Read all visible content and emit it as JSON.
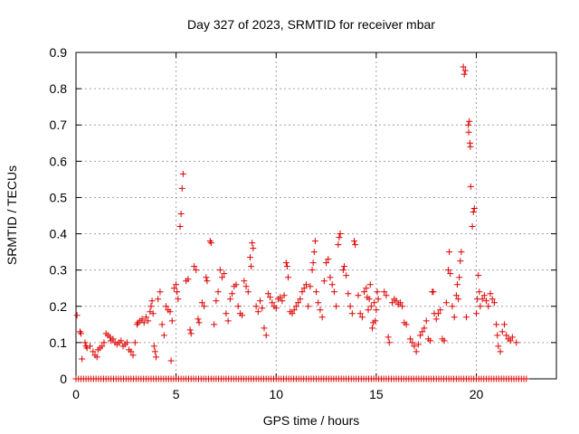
{
  "chart_data": {
    "type": "scatter",
    "title": "Day 327 of 2023, SRMTID for receiver mbar",
    "xlabel": "GPS time / hours",
    "ylabel": "SRMTID / TECUs",
    "xlim": [
      0,
      24
    ],
    "ylim": [
      0,
      0.9
    ],
    "x_ticks": [
      0,
      5,
      10,
      15,
      20
    ],
    "x_tick_labels": [
      "0",
      "5",
      "10",
      "15",
      "20"
    ],
    "y_ticks": [
      0,
      0.1,
      0.2,
      0.3,
      0.4,
      0.5,
      0.6,
      0.7,
      0.8,
      0.9
    ],
    "y_tick_labels": [
      "0",
      "0.1",
      "0.2",
      "0.3",
      "0.4",
      "0.5",
      "0.6",
      "0.7",
      "0.8",
      "0.9"
    ],
    "grid": true,
    "marker": "plus",
    "color": "#dd0000",
    "zero_series": {
      "x_start": 0.0,
      "x_end": 22.5,
      "step": 0.125,
      "value": 0
    },
    "series": [
      {
        "name": "SRMTID",
        "points": [
          [
            0.05,
            0.175
          ],
          [
            0.2,
            0.13
          ],
          [
            0.25,
            0.125
          ],
          [
            0.3,
            0.055
          ],
          [
            0.45,
            0.1
          ],
          [
            0.5,
            0.09
          ],
          [
            0.55,
            0.085
          ],
          [
            0.7,
            0.09
          ],
          [
            0.85,
            0.075
          ],
          [
            0.95,
            0.065
          ],
          [
            1.05,
            0.06
          ],
          [
            1.1,
            0.08
          ],
          [
            1.2,
            0.085
          ],
          [
            1.3,
            0.09
          ],
          [
            1.4,
            0.1
          ],
          [
            1.5,
            0.125
          ],
          [
            1.6,
            0.12
          ],
          [
            1.7,
            0.115
          ],
          [
            1.75,
            0.105
          ],
          [
            1.85,
            0.11
          ],
          [
            1.95,
            0.1
          ],
          [
            2.05,
            0.095
          ],
          [
            2.15,
            0.1
          ],
          [
            2.25,
            0.105
          ],
          [
            2.35,
            0.09
          ],
          [
            2.45,
            0.095
          ],
          [
            2.55,
            0.1
          ],
          [
            2.65,
            0.08
          ],
          [
            2.75,
            0.075
          ],
          [
            2.85,
            0.065
          ],
          [
            2.95,
            0.1
          ],
          [
            3.05,
            0.15
          ],
          [
            3.1,
            0.155
          ],
          [
            3.2,
            0.16
          ],
          [
            3.3,
            0.165
          ],
          [
            3.4,
            0.155
          ],
          [
            3.5,
            0.17
          ],
          [
            3.6,
            0.16
          ],
          [
            3.7,
            0.185
          ],
          [
            3.75,
            0.2
          ],
          [
            3.8,
            0.215
          ],
          [
            3.85,
            0.18
          ],
          [
            3.9,
            0.09
          ],
          [
            3.95,
            0.075
          ],
          [
            4.0,
            0.06
          ],
          [
            4.1,
            0.22
          ],
          [
            4.2,
            0.24
          ],
          [
            4.3,
            0.15
          ],
          [
            4.4,
            0.12
          ],
          [
            4.5,
            0.2
          ],
          [
            4.6,
            0.19
          ],
          [
            4.7,
            0.185
          ],
          [
            4.75,
            0.05
          ],
          [
            4.8,
            0.16
          ],
          [
            4.9,
            0.25
          ],
          [
            5.0,
            0.26
          ],
          [
            5.05,
            0.24
          ],
          [
            5.1,
            0.22
          ],
          [
            5.2,
            0.42
          ],
          [
            5.25,
            0.455
          ],
          [
            5.3,
            0.525
          ],
          [
            5.35,
            0.565
          ],
          [
            5.5,
            0.27
          ],
          [
            5.6,
            0.275
          ],
          [
            5.7,
            0.135
          ],
          [
            5.75,
            0.125
          ],
          [
            5.9,
            0.31
          ],
          [
            6.0,
            0.3
          ],
          [
            6.1,
            0.165
          ],
          [
            6.15,
            0.155
          ],
          [
            6.3,
            0.21
          ],
          [
            6.4,
            0.2
          ],
          [
            6.5,
            0.28
          ],
          [
            6.55,
            0.27
          ],
          [
            6.7,
            0.38
          ],
          [
            6.75,
            0.375
          ],
          [
            6.9,
            0.15
          ],
          [
            7.0,
            0.215
          ],
          [
            7.1,
            0.24
          ],
          [
            7.2,
            0.3
          ],
          [
            7.3,
            0.28
          ],
          [
            7.4,
            0.29
          ],
          [
            7.5,
            0.18
          ],
          [
            7.6,
            0.16
          ],
          [
            7.7,
            0.22
          ],
          [
            7.8,
            0.235
          ],
          [
            7.9,
            0.255
          ],
          [
            8.0,
            0.26
          ],
          [
            8.1,
            0.2
          ],
          [
            8.2,
            0.18
          ],
          [
            8.3,
            0.175
          ],
          [
            8.4,
            0.27
          ],
          [
            8.5,
            0.255
          ],
          [
            8.6,
            0.24
          ],
          [
            8.7,
            0.335
          ],
          [
            8.75,
            0.31
          ],
          [
            8.8,
            0.375
          ],
          [
            8.85,
            0.36
          ],
          [
            9.0,
            0.2
          ],
          [
            9.1,
            0.185
          ],
          [
            9.2,
            0.215
          ],
          [
            9.3,
            0.195
          ],
          [
            9.4,
            0.14
          ],
          [
            9.5,
            0.12
          ],
          [
            9.6,
            0.235
          ],
          [
            9.7,
            0.225
          ],
          [
            9.8,
            0.21
          ],
          [
            9.9,
            0.2
          ],
          [
            10.0,
            0.195
          ],
          [
            10.1,
            0.22
          ],
          [
            10.2,
            0.225
          ],
          [
            10.3,
            0.215
          ],
          [
            10.4,
            0.23
          ],
          [
            10.5,
            0.32
          ],
          [
            10.55,
            0.31
          ],
          [
            10.6,
            0.28
          ],
          [
            10.7,
            0.185
          ],
          [
            10.8,
            0.18
          ],
          [
            10.9,
            0.19
          ],
          [
            11.0,
            0.2
          ],
          [
            11.1,
            0.21
          ],
          [
            11.2,
            0.22
          ],
          [
            11.3,
            0.24
          ],
          [
            11.4,
            0.25
          ],
          [
            11.5,
            0.26
          ],
          [
            11.6,
            0.2
          ],
          [
            11.7,
            0.255
          ],
          [
            11.8,
            0.3
          ],
          [
            11.85,
            0.32
          ],
          [
            11.9,
            0.35
          ],
          [
            11.95,
            0.38
          ],
          [
            12.0,
            0.24
          ],
          [
            12.1,
            0.21
          ],
          [
            12.2,
            0.19
          ],
          [
            12.3,
            0.17
          ],
          [
            12.4,
            0.27
          ],
          [
            12.5,
            0.32
          ],
          [
            12.6,
            0.33
          ],
          [
            12.7,
            0.28
          ],
          [
            12.8,
            0.26
          ],
          [
            12.9,
            0.24
          ],
          [
            13.0,
            0.2
          ],
          [
            13.1,
            0.37
          ],
          [
            13.15,
            0.39
          ],
          [
            13.2,
            0.4
          ],
          [
            13.35,
            0.3
          ],
          [
            13.4,
            0.31
          ],
          [
            13.5,
            0.285
          ],
          [
            13.6,
            0.235
          ],
          [
            13.7,
            0.2
          ],
          [
            13.8,
            0.18
          ],
          [
            13.9,
            0.38
          ],
          [
            13.95,
            0.37
          ],
          [
            14.1,
            0.23
          ],
          [
            14.2,
            0.18
          ],
          [
            14.3,
            0.17
          ],
          [
            14.4,
            0.24
          ],
          [
            14.5,
            0.25
          ],
          [
            14.55,
            0.225
          ],
          [
            14.6,
            0.19
          ],
          [
            14.65,
            0.22
          ],
          [
            14.7,
            0.26
          ],
          [
            14.75,
            0.2
          ],
          [
            14.8,
            0.14
          ],
          [
            14.85,
            0.155
          ],
          [
            14.9,
            0.21
          ],
          [
            14.95,
            0.16
          ],
          [
            15.0,
            0.19
          ],
          [
            15.05,
            0.24
          ],
          [
            15.1,
            0.22
          ],
          [
            15.4,
            0.24
          ],
          [
            15.5,
            0.23
          ],
          [
            15.6,
            0.115
          ],
          [
            15.65,
            0.1
          ],
          [
            15.8,
            0.21
          ],
          [
            15.9,
            0.22
          ],
          [
            16.0,
            0.215
          ],
          [
            16.1,
            0.205
          ],
          [
            16.2,
            0.21
          ],
          [
            16.3,
            0.2
          ],
          [
            16.4,
            0.155
          ],
          [
            16.5,
            0.15
          ],
          [
            16.7,
            0.11
          ],
          [
            16.8,
            0.1
          ],
          [
            16.9,
            0.09
          ],
          [
            17.0,
            0.075
          ],
          [
            17.1,
            0.095
          ],
          [
            17.2,
            0.12
          ],
          [
            17.3,
            0.13
          ],
          [
            17.4,
            0.14
          ],
          [
            17.5,
            0.16
          ],
          [
            17.6,
            0.11
          ],
          [
            17.7,
            0.105
          ],
          [
            17.8,
            0.24
          ],
          [
            17.85,
            0.24
          ],
          [
            17.9,
            0.18
          ],
          [
            18.0,
            0.165
          ],
          [
            18.1,
            0.18
          ],
          [
            18.2,
            0.19
          ],
          [
            18.3,
            0.11
          ],
          [
            18.4,
            0.105
          ],
          [
            18.5,
            0.21
          ],
          [
            18.6,
            0.3
          ],
          [
            18.65,
            0.35
          ],
          [
            18.7,
            0.29
          ],
          [
            18.8,
            0.2
          ],
          [
            18.9,
            0.17
          ],
          [
            19.0,
            0.23
          ],
          [
            19.05,
            0.26
          ],
          [
            19.1,
            0.22
          ],
          [
            19.15,
            0.28
          ],
          [
            19.2,
            0.325
          ],
          [
            19.25,
            0.35
          ],
          [
            19.35,
            0.86
          ],
          [
            19.4,
            0.84
          ],
          [
            19.45,
            0.85
          ],
          [
            19.5,
            0.17
          ],
          [
            19.6,
            0.7
          ],
          [
            19.62,
            0.68
          ],
          [
            19.65,
            0.71
          ],
          [
            19.68,
            0.65
          ],
          [
            19.7,
            0.64
          ],
          [
            19.72,
            0.53
          ],
          [
            19.8,
            0.42
          ],
          [
            19.85,
            0.46
          ],
          [
            19.9,
            0.47
          ],
          [
            20.0,
            0.18
          ],
          [
            20.05,
            0.22
          ],
          [
            20.1,
            0.285
          ],
          [
            20.15,
            0.24
          ],
          [
            20.2,
            0.2
          ],
          [
            20.3,
            0.22
          ],
          [
            20.4,
            0.23
          ],
          [
            20.5,
            0.215
          ],
          [
            20.6,
            0.2
          ],
          [
            20.7,
            0.235
          ],
          [
            20.8,
            0.22
          ],
          [
            20.9,
            0.21
          ],
          [
            21.0,
            0.15
          ],
          [
            21.05,
            0.12
          ],
          [
            21.1,
            0.09
          ],
          [
            21.2,
            0.075
          ],
          [
            21.3,
            0.13
          ],
          [
            21.4,
            0.15
          ],
          [
            21.5,
            0.12
          ],
          [
            21.6,
            0.11
          ],
          [
            21.7,
            0.105
          ],
          [
            21.8,
            0.115
          ],
          [
            22.0,
            0.1
          ]
        ]
      }
    ]
  }
}
